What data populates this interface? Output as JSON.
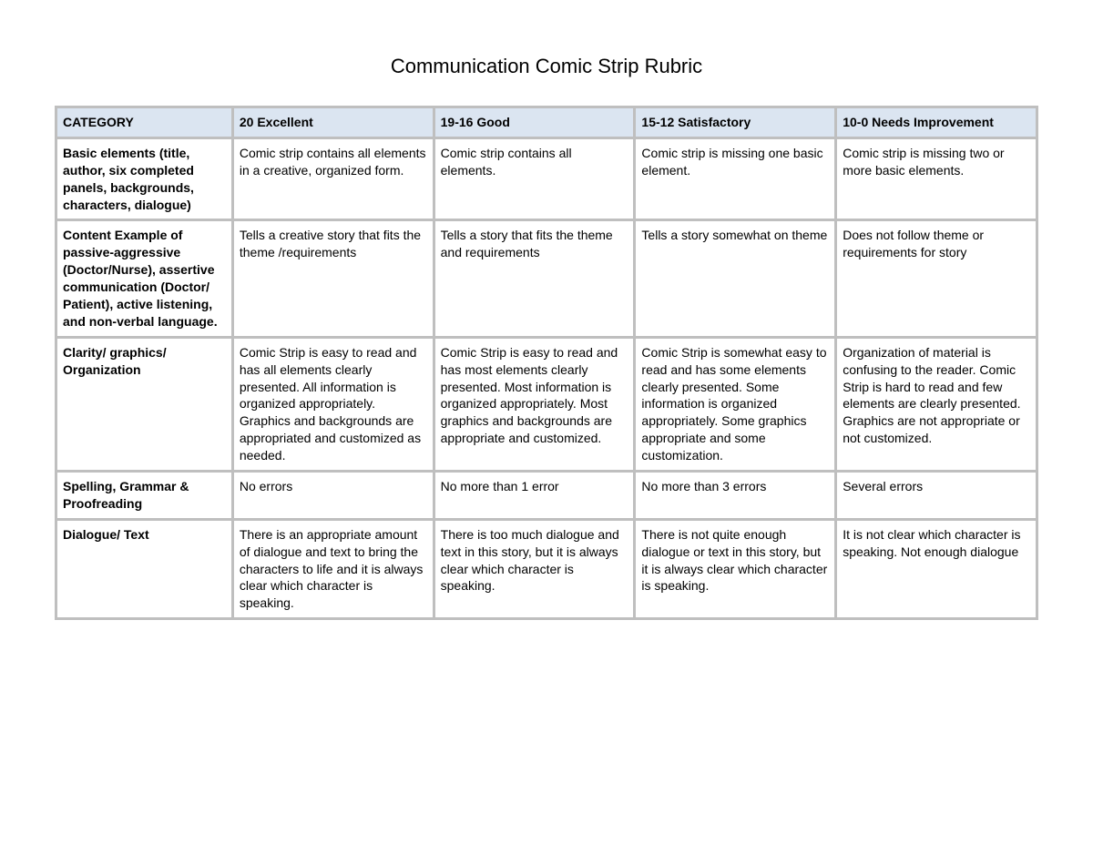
{
  "title": "Communication Comic Strip Rubric",
  "table": {
    "header_bg": "#dbe5f1",
    "border_color": "#bfbfbf",
    "columns": [
      "CATEGORY",
      "20 Excellent",
      "19-16 Good",
      "15-12 Satisfactory",
      "10-0 Needs Improvement"
    ],
    "rows": [
      {
        "category": "Basic elements (title, author, six completed panels, backgrounds, characters, dialogue)",
        "cells": [
          "Comic strip contains all elements in a creative, organized form.",
          "Comic strip contains all elements.",
          "Comic strip is missing one basic element.",
          "Comic strip is missing two or more basic elements."
        ]
      },
      {
        "category": "Content\nExample of passive-aggressive (Doctor/Nurse), assertive communication (Doctor/ Patient), active listening, and non-verbal language.",
        "cells": [
          "Tells a creative story that fits the theme /requirements",
          "Tells a story that fits the theme and requirements",
          "Tells a story somewhat on theme",
          "Does not follow theme or requirements for story"
        ]
      },
      {
        "category": "Clarity/ graphics/ Organization",
        "cells": [
          "Comic Strip is easy to read and has all elements clearly presented. All information is organized appropriately. Graphics and backgrounds are appropriated and customized as needed.",
          "Comic Strip is easy to read and has most elements clearly presented. Most information is organized appropriately. Most graphics and backgrounds are appropriate and customized.",
          "Comic Strip is somewhat easy to read and has some elements clearly presented. Some information is organized appropriately. Some graphics appropriate and some customization.",
          "Organization of material is confusing to the reader. Comic Strip is hard to read and few elements are clearly presented. Graphics are not appropriate or not customized."
        ]
      },
      {
        "category": "Spelling, Grammar & Proofreading",
        "cells": [
          "No errors",
          "No more than 1 error",
          "No more than 3 errors",
          "Several errors"
        ]
      },
      {
        "category": "Dialogue/ Text",
        "cells": [
          "There is an appropriate amount of dialogue and text to bring the characters to life and it is always clear which character is speaking.",
          "There is too much dialogue and text in this story, but it is always clear which character is speaking.",
          "There is not quite enough dialogue or text in this story, but it is always clear which character is speaking.",
          "It is not clear which character is speaking. Not enough dialogue"
        ]
      }
    ]
  }
}
